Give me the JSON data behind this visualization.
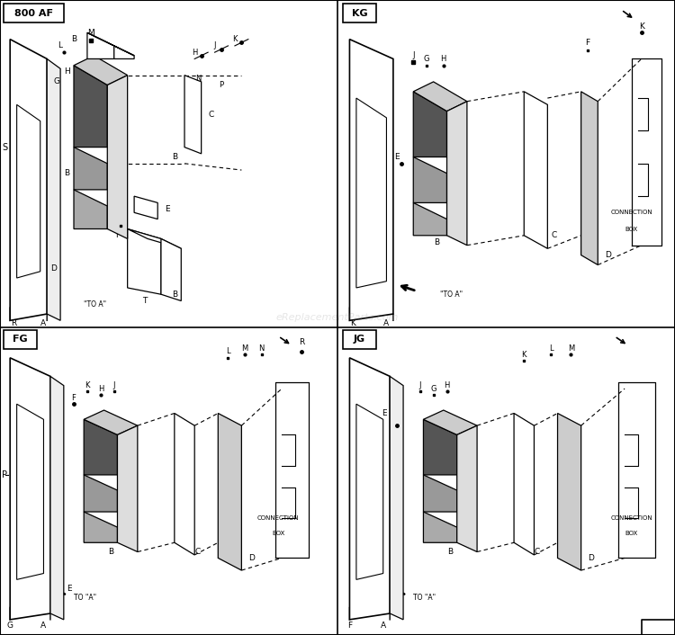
{
  "bg_color": "#ffffff",
  "watermark": "eReplacementParts.com",
  "panels": [
    {
      "label": "800 AF",
      "row": 0,
      "col": 0
    },
    {
      "label": "KG",
      "row": 0,
      "col": 1
    },
    {
      "label": "FG",
      "row": 1,
      "col": 0
    },
    {
      "label": "JG",
      "row": 1,
      "col": 1
    }
  ]
}
